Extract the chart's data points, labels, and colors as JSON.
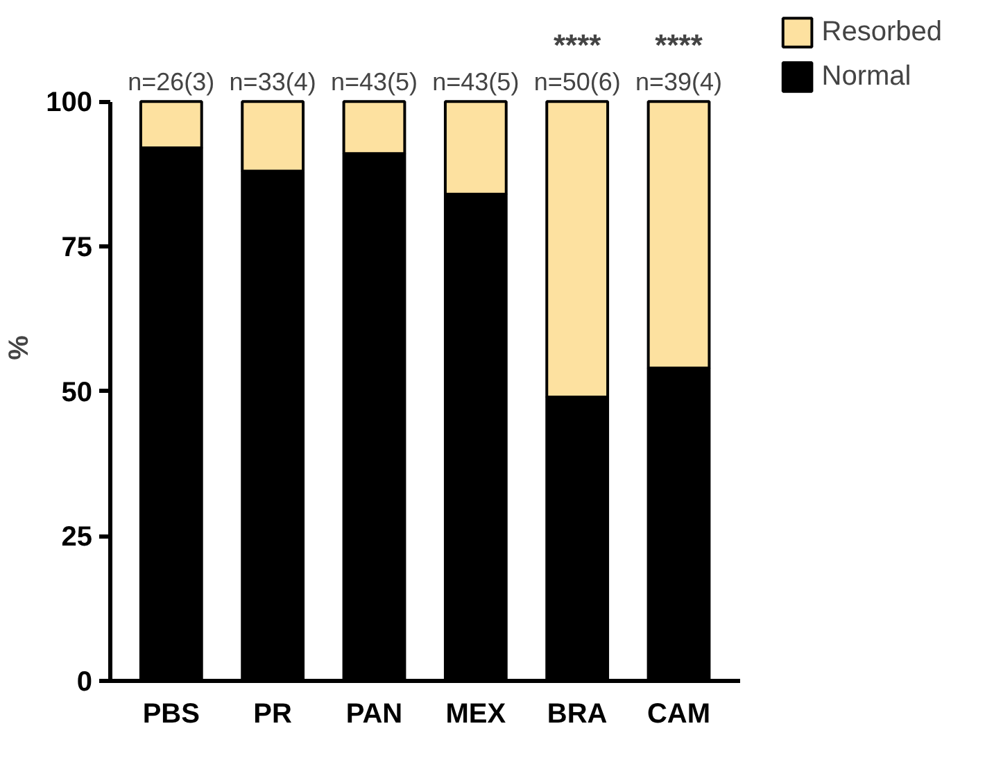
{
  "chart_data": {
    "type": "bar",
    "stacked": true,
    "ylabel": "%",
    "categories": [
      "PBS",
      "PR",
      "PAN",
      "MEX",
      "BRA",
      "CAM"
    ],
    "series": [
      {
        "name": "Normal",
        "color": "#000000",
        "values": [
          92,
          88,
          91,
          84,
          49,
          54
        ]
      },
      {
        "name": "Resorbed",
        "color": "#fde1a0",
        "values": [
          8,
          12,
          9,
          16,
          51,
          46
        ]
      }
    ],
    "ylim": [
      0,
      100
    ],
    "yticks": [
      0,
      25,
      50,
      75,
      100
    ],
    "grid": false,
    "legend": "right",
    "annotations": [
      {
        "text": "n=26(3)",
        "x": "PBS",
        "y": 100
      },
      {
        "text": "n=33(4)",
        "x": "PR",
        "y": 100
      },
      {
        "text": "n=43(5)",
        "x": "PAN",
        "y": 100
      },
      {
        "text": "n=43(5)",
        "x": "MEX",
        "y": 100
      },
      {
        "text": "n=50(6)",
        "x": "BRA",
        "y": 100
      },
      {
        "text": "****",
        "x": "BRA",
        "y": 100
      },
      {
        "text": "n=39(4)",
        "x": "CAM",
        "y": 100
      },
      {
        "text": "****",
        "x": "CAM",
        "y": 100
      }
    ]
  }
}
